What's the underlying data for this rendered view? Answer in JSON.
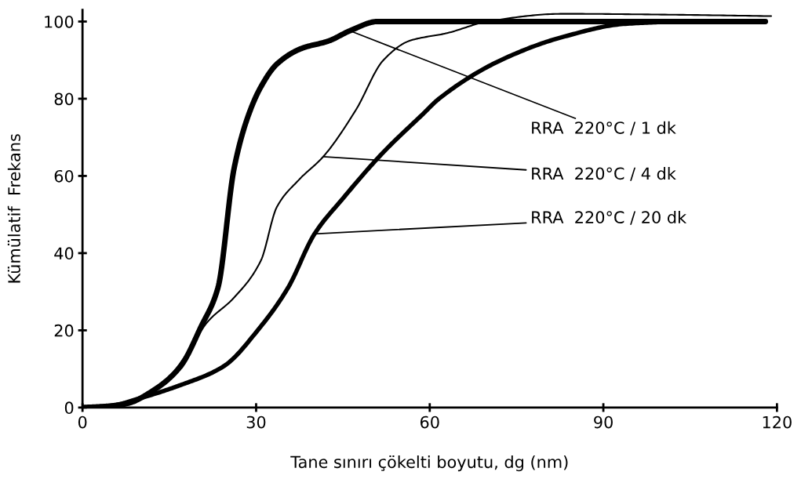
{
  "chart_data": {
    "type": "line",
    "xlabel": "Tane sınırı çökelti boyutu, dg (nm)",
    "ylabel": "Kümülatif  Frekans",
    "xlim": [
      0,
      120
    ],
    "ylim": [
      0,
      103
    ],
    "xticks": [
      0,
      30,
      60,
      90,
      120
    ],
    "yticks": [
      0,
      20,
      40,
      60,
      80,
      100
    ],
    "grid": false,
    "legend": false,
    "marker": "none",
    "line_style": "solid",
    "annotations": [
      {
        "text": "RRA  220°C / 1 dk",
        "x": 46.2,
        "y": 97.6
      },
      {
        "text": "RRA  220°C / 4 dk",
        "x": 41.6,
        "y": 65
      },
      {
        "text": "RRA  220°C / 20 dk",
        "x": 40.1,
        "y": 45
      }
    ],
    "series": [
      {
        "color": "#000000",
        "x": [
          0,
          4,
          7.6,
          12.2,
          16.9,
          20.5,
          23.4,
          26.2,
          28.5,
          30.8,
          33.6,
          37.8,
          42.6,
          46.2,
          51,
          60,
          80,
          100,
          118
        ],
        "values": [
          0,
          0.3,
          1,
          4.4,
          10.6,
          21,
          31,
          62,
          75,
          83,
          89,
          93,
          95,
          97.6,
          100,
          100,
          100,
          100,
          100
        ]
      },
      {
        "color": "#000000",
        "x": [
          0,
          4,
          7.6,
          11,
          15,
          18.5,
          21.5,
          26.2,
          30.8,
          33.6,
          37.4,
          41.6,
          47.2,
          52,
          56.5,
          63,
          70,
          83,
          100,
          119
        ],
        "values": [
          0,
          0.3,
          1,
          3.5,
          8,
          15,
          22,
          28.5,
          38,
          52,
          59,
          65,
          77,
          90,
          95,
          97,
          100,
          102,
          101.8,
          101.4
        ]
      },
      {
        "color": "#000000",
        "x": [
          0,
          5,
          9.9,
          16.9,
          24.3,
          30.8,
          35.5,
          40.1,
          44.9,
          51.9,
          58.8,
          61.6,
          72.3,
          83,
          93.8,
          105,
          118
        ],
        "values": [
          0,
          0.5,
          2.4,
          5.8,
          10.6,
          21,
          31,
          45,
          54,
          66,
          76,
          80,
          90,
          96,
          99.4,
          100,
          100
        ]
      }
    ]
  }
}
